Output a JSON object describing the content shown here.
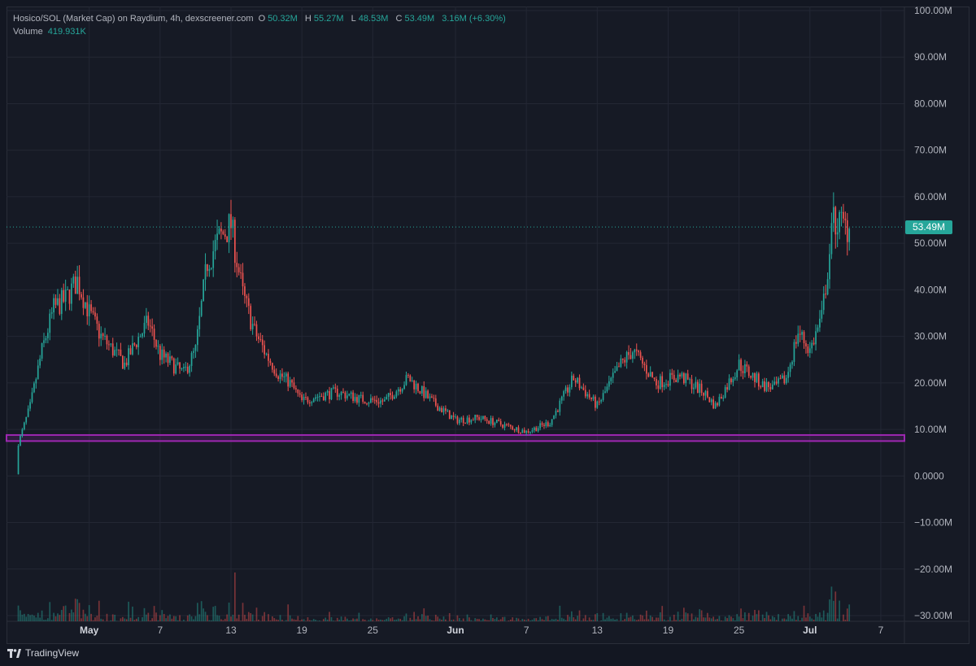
{
  "legend": {
    "symbol": "Hosico/SOL (Market Cap) on Raydium, 4h, dexscreener.com",
    "o_label": "O",
    "o_value": "50.32M",
    "h_label": "H",
    "h_value": "55.27M",
    "l_label": "L",
    "l_value": "48.53M",
    "c_label": "C",
    "c_value": "53.49M",
    "change": "3.16M (+6.30%)",
    "volume_label": "Volume",
    "volume_value": "419.931K"
  },
  "price_badge": "53.49M",
  "brand": {
    "name": "TradingView",
    "icon": "tradingview-logo-icon"
  },
  "colors": {
    "up": "#26a69a",
    "down": "#ef5350",
    "support_band": "#9c27b0",
    "background": "#161a25"
  },
  "chart_data": {
    "type": "candlestick",
    "interval": "4h",
    "y_axis": {
      "ylim": [
        -30000000,
        100000000
      ],
      "tick_values": [
        100000000,
        90000000,
        80000000,
        70000000,
        60000000,
        50000000,
        40000000,
        30000000,
        20000000,
        10000000,
        0,
        -10000000,
        -20000000,
        -30000000
      ],
      "tick_labels": [
        "100.00M",
        "90.00M",
        "80.00M",
        "70.00M",
        "60.00M",
        "50.00M",
        "40.00M",
        "30.00M",
        "20.00M",
        "10.00M",
        "0.0000",
        "−10.00M",
        "−20.00M",
        "−30.00M"
      ]
    },
    "x_axis": {
      "range": [
        "2024-04-24",
        "2024-07-09"
      ],
      "ticks": [
        {
          "date": "2024-05-01",
          "label": "May",
          "bold": true
        },
        {
          "date": "2024-05-07",
          "label": "7",
          "bold": false
        },
        {
          "date": "2024-05-13",
          "label": "13",
          "bold": false
        },
        {
          "date": "2024-05-19",
          "label": "19",
          "bold": false
        },
        {
          "date": "2024-05-25",
          "label": "25",
          "bold": false
        },
        {
          "date": "2024-06-01",
          "label": "Jun",
          "bold": true
        },
        {
          "date": "2024-06-07",
          "label": "7",
          "bold": false
        },
        {
          "date": "2024-06-13",
          "label": "13",
          "bold": false
        },
        {
          "date": "2024-06-19",
          "label": "19",
          "bold": false
        },
        {
          "date": "2024-06-25",
          "label": "25",
          "bold": false
        },
        {
          "date": "2024-07-01",
          "label": "Jul",
          "bold": true
        },
        {
          "date": "2024-07-07",
          "label": "7",
          "bold": false
        }
      ]
    },
    "last_price": 53490000,
    "support_band": [
      7500000,
      8800000
    ],
    "close_series": {
      "series_start": "2024-04-25",
      "dates": [
        "2024-04-25",
        "2024-04-26",
        "2024-04-27",
        "2024-04-28",
        "2024-04-29",
        "2024-04-30",
        "2024-05-01",
        "2024-05-02",
        "2024-05-03",
        "2024-05-04",
        "2024-05-05",
        "2024-05-06",
        "2024-05-07",
        "2024-05-08",
        "2024-05-09",
        "2024-05-10",
        "2024-05-11",
        "2024-05-12",
        "2024-05-13",
        "2024-05-14",
        "2024-05-15",
        "2024-05-16",
        "2024-05-17",
        "2024-05-18",
        "2024-05-19",
        "2024-05-20",
        "2024-05-22",
        "2024-05-24",
        "2024-05-26",
        "2024-05-28",
        "2024-05-30",
        "2024-06-01",
        "2024-06-03",
        "2024-06-05",
        "2024-06-07",
        "2024-06-09",
        "2024-06-11",
        "2024-06-13",
        "2024-06-15",
        "2024-06-16",
        "2024-06-18",
        "2024-06-20",
        "2024-06-22",
        "2024-06-23",
        "2024-06-25",
        "2024-06-27",
        "2024-06-28",
        "2024-06-29",
        "2024-06-30",
        "2024-07-01",
        "2024-07-02",
        "2024-07-03",
        "2024-07-04"
      ],
      "closes": [
        7000000,
        15000000,
        27000000,
        36000000,
        38000000,
        42000000,
        35000000,
        30000000,
        27000000,
        24000000,
        29000000,
        33000000,
        26000000,
        24000000,
        22000000,
        27000000,
        46000000,
        51000000,
        54000000,
        39000000,
        31000000,
        26000000,
        22000000,
        20000000,
        16000000,
        17000000,
        18000000,
        16500000,
        16000000,
        21000000,
        16000000,
        12000000,
        12500000,
        11000000,
        9500000,
        11500000,
        21000000,
        15000000,
        24000000,
        27000000,
        20000000,
        21500000,
        18000000,
        15000000,
        24000000,
        19500000,
        19000000,
        21000000,
        31000000,
        27000000,
        34000000,
        55000000,
        53490000
      ]
    }
  }
}
